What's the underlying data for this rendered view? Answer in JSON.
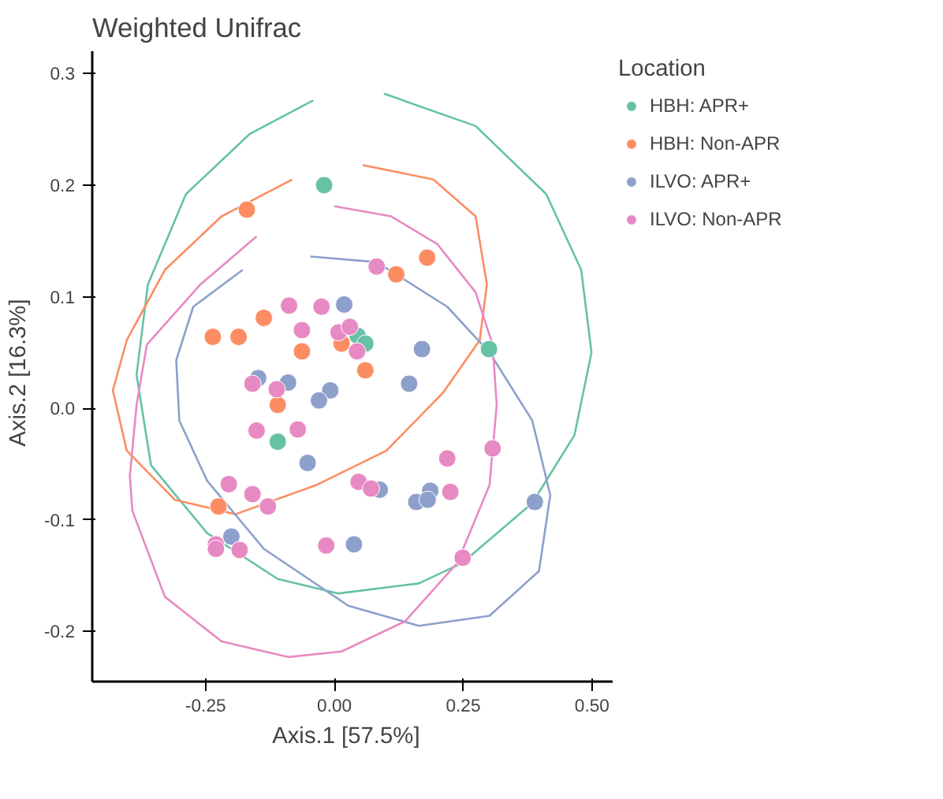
{
  "chart_data": {
    "type": "scatter",
    "title": "Weighted Unifrac",
    "xlabel": "Axis.1   [57.5%]",
    "ylabel": "Axis.2   [16.3%]",
    "legend_title": "Location",
    "legend": "right",
    "grid": false,
    "marker": "circle",
    "xlim": [
      -0.47,
      0.54
    ],
    "ylim": [
      -0.245,
      0.32
    ],
    "xticks": [
      {
        "value": -0.25,
        "label": "-0.25"
      },
      {
        "value": 0,
        "label": "0.00"
      },
      {
        "value": 0.25,
        "label": "0.25"
      },
      {
        "value": 0.5,
        "label": "0.50"
      }
    ],
    "yticks": [
      -0.2,
      -0.1,
      {
        "value": 0,
        "label": "0.0"
      },
      0.1,
      0.2,
      0.3
    ],
    "series": [
      {
        "color": "#66c2a5",
        "type": "line",
        "marker": "none",
        "x": [
          0.096,
          0.274,
          0.411,
          0.479,
          0.499,
          0.466,
          0.384,
          0.247,
          0.164,
          0.008,
          -0.11,
          -0.247,
          -0.356,
          -0.384,
          -0.362,
          -0.288,
          -0.164,
          -0.041
        ],
        "values": [
          0.282,
          0.253,
          0.192,
          0.124,
          0.05,
          -0.024,
          -0.085,
          -0.139,
          -0.157,
          -0.166,
          -0.153,
          -0.112,
          -0.051,
          0.03,
          0.111,
          0.192,
          0.246,
          0.276
        ]
      },
      {
        "color": "#fc8d62",
        "type": "line",
        "marker": "none",
        "x": [
          0.055,
          0.192,
          0.274,
          0.296,
          0.282,
          0.211,
          0.101,
          -0.036,
          -0.192,
          -0.31,
          -0.403,
          -0.43,
          -0.403,
          -0.329,
          -0.219,
          -0.082
        ],
        "values": [
          0.218,
          0.205,
          0.172,
          0.111,
          0.061,
          0.014,
          -0.038,
          -0.069,
          -0.095,
          -0.082,
          -0.038,
          0.016,
          0.061,
          0.124,
          0.172,
          0.205
        ]
      },
      {
        "color": "#8da0cb",
        "type": "line",
        "marker": "none",
        "x": [
          -0.047,
          0.082,
          0.219,
          0.301,
          0.384,
          0.419,
          0.397,
          0.301,
          0.164,
          0.027,
          -0.137,
          -0.247,
          -0.301,
          -0.307,
          -0.274,
          -0.178
        ],
        "values": [
          0.136,
          0.131,
          0.091,
          0.05,
          -0.011,
          -0.078,
          -0.146,
          -0.186,
          -0.195,
          -0.177,
          -0.126,
          -0.065,
          -0.011,
          0.043,
          0.091,
          0.124
        ]
      },
      {
        "color": "#e78ac3",
        "type": "line",
        "marker": "none",
        "x": [
          0,
          0.11,
          0.2,
          0.274,
          0.307,
          0.315,
          0.301,
          0.238,
          0.137,
          0.014,
          -0.09,
          -0.219,
          -0.329,
          -0.392,
          -0.397,
          -0.384,
          -0.364,
          -0.26,
          -0.151
        ],
        "values": [
          0.181,
          0.172,
          0.147,
          0.104,
          0.057,
          0.003,
          -0.069,
          -0.139,
          -0.191,
          -0.218,
          -0.223,
          -0.209,
          -0.169,
          -0.092,
          -0.061,
          0.003,
          0.057,
          0.111,
          0.154
        ]
      },
      {
        "name": "HBH: APR+",
        "color": "#66c2a5",
        "x": [
          -0.02,
          0.045,
          0.06,
          0.3,
          -0.11
        ],
        "values": [
          0.2,
          0.065,
          0.058,
          0.053,
          -0.03
        ]
      },
      {
        "name": "HBH: Non-APR",
        "color": "#fc8d62",
        "x": [
          -0.17,
          0.18,
          0.12,
          -0.137,
          -0.236,
          -0.186,
          -0.063,
          0.014,
          0.06,
          -0.11,
          -0.225
        ],
        "values": [
          0.178,
          0.135,
          0.12,
          0.081,
          0.064,
          0.064,
          0.051,
          0.058,
          0.034,
          0.003,
          -0.088
        ]
      },
      {
        "name": "ILVO: APR+",
        "color": "#8da0cb",
        "x": [
          0.019,
          0.17,
          -0.148,
          -0.09,
          -0.008,
          -0.03,
          0.145,
          -0.052,
          0.088,
          0.186,
          0.159,
          0.181,
          0.389,
          -0.2,
          0.038
        ],
        "values": [
          0.093,
          0.053,
          0.027,
          0.023,
          0.016,
          0.007,
          0.022,
          -0.049,
          -0.073,
          -0.074,
          -0.084,
          -0.082,
          -0.084,
          -0.115,
          -0.122
        ]
      },
      {
        "name": "ILVO: Non-APR",
        "color": "#e78ac3",
        "x": [
          0.082,
          -0.088,
          -0.025,
          -0.063,
          0.008,
          0.03,
          0.044,
          -0.159,
          -0.112,
          -0.151,
          -0.071,
          0.307,
          0.219,
          0.225,
          0.047,
          0.071,
          -0.205,
          -0.159,
          -0.129,
          -0.23,
          -0.23,
          -0.184,
          -0.016,
          0.249
        ],
        "values": [
          0.127,
          0.092,
          0.091,
          0.07,
          0.068,
          0.073,
          0.051,
          0.022,
          0.017,
          -0.02,
          -0.019,
          -0.036,
          -0.045,
          -0.075,
          -0.066,
          -0.072,
          -0.068,
          -0.077,
          -0.088,
          -0.122,
          -0.126,
          -0.127,
          -0.123,
          -0.134
        ]
      }
    ]
  }
}
